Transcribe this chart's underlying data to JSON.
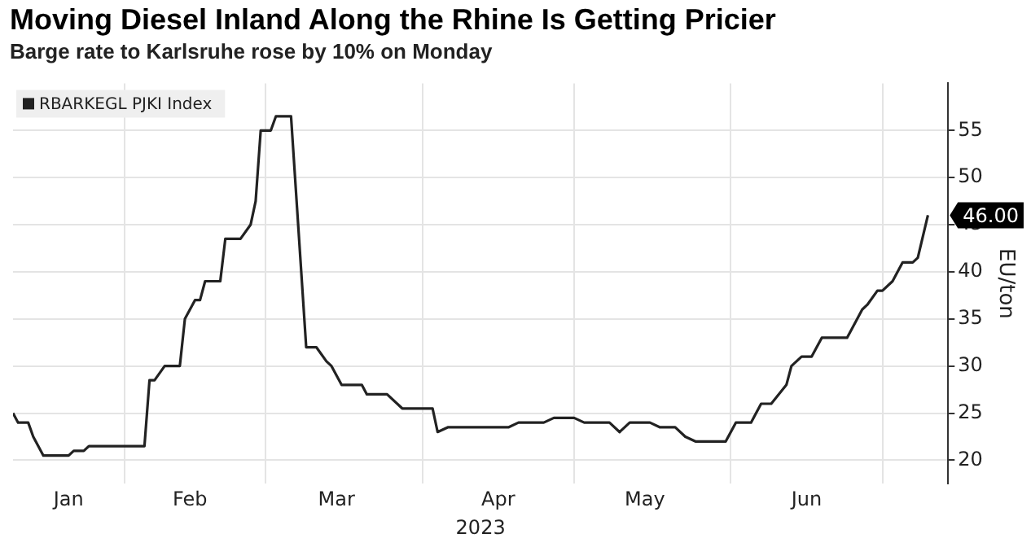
{
  "chart_data": {
    "type": "line",
    "title": "Moving Diesel Inland Along the Rhine Is Getting Pricier",
    "subtitle": "Barge rate to Karlsruhe rose by 10% on Monday",
    "xlabel": "2023",
    "ylabel": "EU/ton",
    "x": [
      "2023-01-10",
      "2023-01-11",
      "2023-01-13",
      "2023-01-14",
      "2023-01-16",
      "2023-01-21",
      "2023-01-22",
      "2023-01-24",
      "2023-01-25",
      "2023-02-05",
      "2023-02-06",
      "2023-02-07",
      "2023-02-09",
      "2023-02-12",
      "2023-02-13",
      "2023-02-15",
      "2023-02-16",
      "2023-02-17",
      "2023-02-20",
      "2023-02-21",
      "2023-02-24",
      "2023-02-26",
      "2023-02-27",
      "2023-02-28",
      "2023-03-02",
      "2023-03-03",
      "2023-03-06",
      "2023-03-09",
      "2023-03-11",
      "2023-03-13",
      "2023-03-14",
      "2023-03-16",
      "2023-03-20",
      "2023-03-21",
      "2023-03-25",
      "2023-03-28",
      "2023-04-03",
      "2023-04-04",
      "2023-04-06",
      "2023-04-18",
      "2023-04-20",
      "2023-04-25",
      "2023-04-27",
      "2023-05-01",
      "2023-05-03",
      "2023-05-08",
      "2023-05-10",
      "2023-05-12",
      "2023-05-16",
      "2023-05-18",
      "2023-05-21",
      "2023-05-23",
      "2023-05-25",
      "2023-05-31",
      "2023-06-02",
      "2023-06-05",
      "2023-06-07",
      "2023-06-09",
      "2023-06-12",
      "2023-06-13",
      "2023-06-15",
      "2023-06-17",
      "2023-06-19",
      "2023-06-24",
      "2023-06-25",
      "2023-06-27",
      "2023-06-28",
      "2023-06-30",
      "2023-07-01",
      "2023-07-03",
      "2023-07-05",
      "2023-07-07",
      "2023-07-08",
      "2023-07-10"
    ],
    "series": [
      {
        "name": "RBARKEGL PJKI Index",
        "color": "#222222",
        "values": [
          25,
          24,
          24,
          22.5,
          20.5,
          20.5,
          21,
          21,
          21.5,
          21.5,
          28.5,
          28.5,
          30,
          30,
          35,
          37,
          37,
          39,
          39,
          43.5,
          43.5,
          45,
          47.5,
          55,
          55,
          56.5,
          56.5,
          32,
          32,
          30.5,
          30,
          28,
          28,
          27,
          27,
          25.5,
          25.5,
          23,
          23.5,
          23.5,
          24,
          24,
          24.5,
          24.5,
          24,
          24,
          23,
          24,
          24,
          23.5,
          23.5,
          22.5,
          22,
          22,
          24,
          24,
          26,
          26,
          28,
          30,
          31,
          31,
          33,
          33,
          34,
          36,
          36.5,
          38,
          38,
          39,
          41,
          41,
          41.5,
          46
        ]
      }
    ],
    "xlim": [
      "2023-01-10",
      "2023-07-14"
    ],
    "xticks": [
      {
        "value": "2023-01-21",
        "label": "Jan"
      },
      {
        "value": "2023-02-01",
        "label": null
      },
      {
        "value": "2023-02-14",
        "label": "Feb"
      },
      {
        "value": "2023-03-01",
        "label": null
      },
      {
        "value": "2023-03-15",
        "label": "Mar"
      },
      {
        "value": "2023-04-01",
        "label": null
      },
      {
        "value": "2023-04-16",
        "label": "Apr"
      },
      {
        "value": "2023-05-01",
        "label": null
      },
      {
        "value": "2023-05-15",
        "label": "May"
      },
      {
        "value": "2023-06-01",
        "label": null
      },
      {
        "value": "2023-06-16",
        "label": "Jun"
      },
      {
        "value": "2023-07-01",
        "label": null
      }
    ],
    "ylim": [
      17.5,
      60
    ],
    "yticks": [
      20,
      25,
      30,
      35,
      40,
      45,
      50,
      55
    ],
    "annotations": [
      {
        "text": "46.00",
        "x": "2023-07-10",
        "y": 46
      }
    ],
    "grid": true,
    "legend": "top left",
    "marker": "none",
    "line_style": "solid"
  }
}
